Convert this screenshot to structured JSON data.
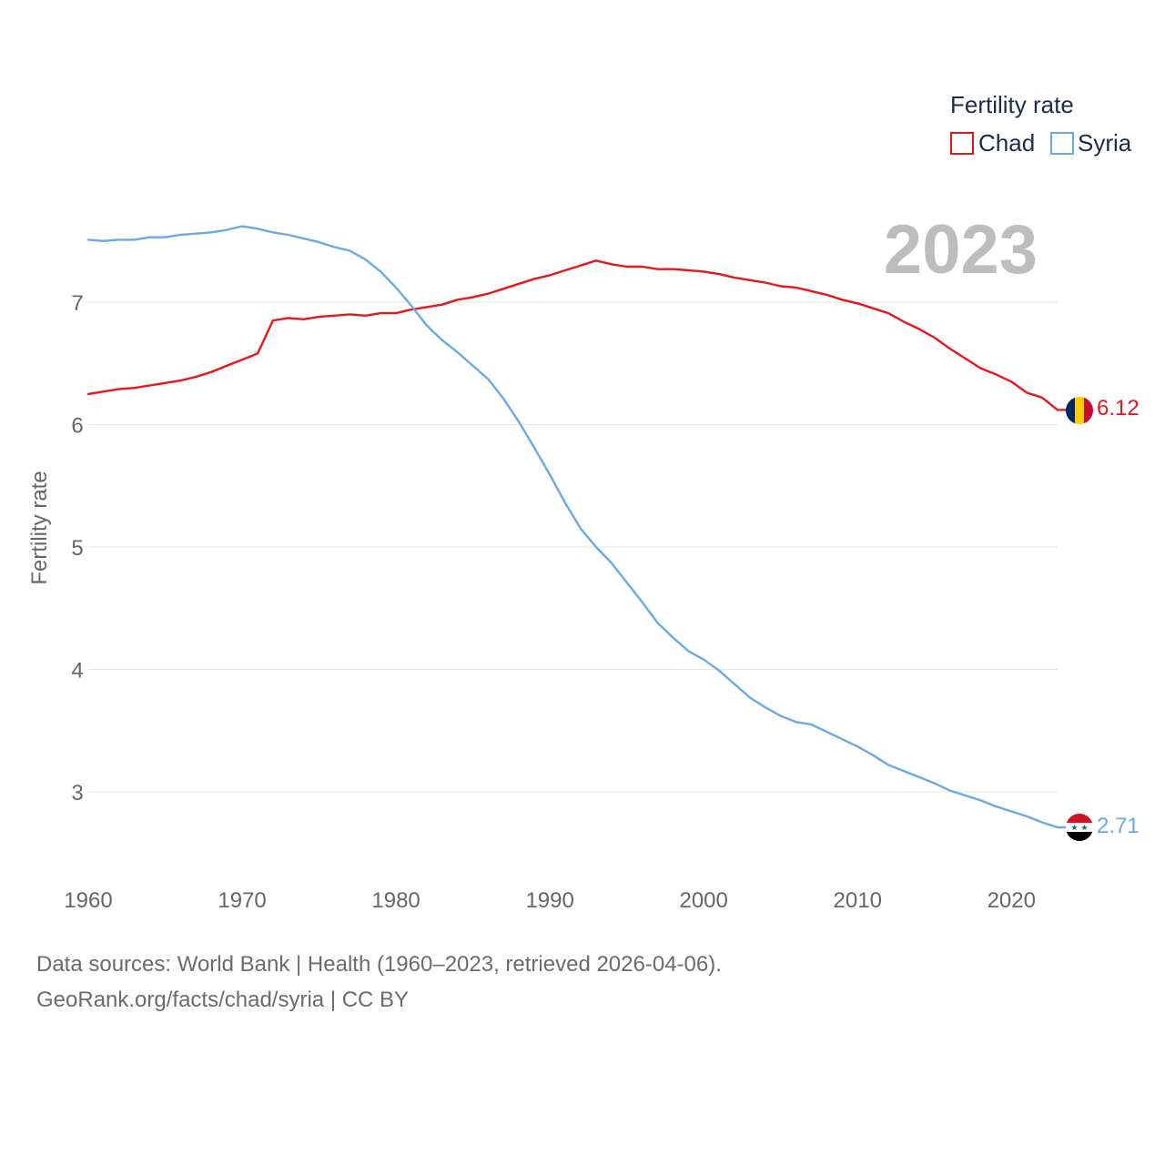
{
  "chart_data": {
    "type": "line",
    "legend_title": "Fertility rate",
    "ylabel": "Fertility rate",
    "xlabel": "",
    "current_year_label": "2023",
    "xlim": [
      1960,
      2023
    ],
    "ylim": [
      2.5,
      7.75
    ],
    "x_ticks": [
      1960,
      1970,
      1980,
      1990,
      2000,
      2010,
      2020
    ],
    "y_ticks": [
      3,
      4,
      5,
      6,
      7
    ],
    "x_tick_labels": [
      "1960",
      "1970",
      "1980",
      "1990",
      "2000",
      "2010",
      "2020"
    ],
    "y_tick_labels": [
      "3",
      "4",
      "5",
      "6",
      "7"
    ],
    "legend_position": "top-right",
    "grid": true,
    "series": [
      {
        "name": "Chad",
        "color": "#e8151b",
        "end_label": "6.12",
        "flag_icon": "chad-flag-icon",
        "start_year": 1960,
        "values": [
          6.25,
          6.27,
          6.29,
          6.3,
          6.32,
          6.34,
          6.36,
          6.39,
          6.43,
          6.48,
          6.53,
          6.58,
          6.85,
          6.87,
          6.86,
          6.88,
          6.89,
          6.9,
          6.89,
          6.91,
          6.91,
          6.94,
          6.96,
          6.98,
          7.02,
          7.04,
          7.07,
          7.11,
          7.15,
          7.19,
          7.22,
          7.26,
          7.3,
          7.34,
          7.31,
          7.29,
          7.29,
          7.27,
          7.27,
          7.26,
          7.25,
          7.23,
          7.2,
          7.18,
          7.16,
          7.13,
          7.12,
          7.09,
          7.06,
          7.02,
          6.99,
          6.95,
          6.91,
          6.84,
          6.78,
          6.71,
          6.62,
          6.54,
          6.46,
          6.41,
          6.35,
          6.26,
          6.22,
          6.12
        ]
      },
      {
        "name": "Syria",
        "color": "#6aaae4",
        "end_label": "2.71",
        "flag_icon": "syria-flag-icon",
        "start_year": 1960,
        "values": [
          7.51,
          7.5,
          7.51,
          7.51,
          7.53,
          7.53,
          7.55,
          7.56,
          7.57,
          7.59,
          7.62,
          7.6,
          7.57,
          7.55,
          7.52,
          7.49,
          7.45,
          7.42,
          7.35,
          7.25,
          7.12,
          6.97,
          6.81,
          6.69,
          6.59,
          6.48,
          6.37,
          6.21,
          6.02,
          5.81,
          5.59,
          5.36,
          5.15,
          5.0,
          4.87,
          4.71,
          4.55,
          4.38,
          4.26,
          4.15,
          4.08,
          3.99,
          3.88,
          3.77,
          3.69,
          3.62,
          3.57,
          3.55,
          3.49,
          3.43,
          3.37,
          3.3,
          3.22,
          3.17,
          3.12,
          3.07,
          3.01,
          2.97,
          2.93,
          2.88,
          2.84,
          2.8,
          2.75,
          2.71
        ]
      }
    ]
  },
  "footer": {
    "line1": "Data sources: World Bank | Health (1960–2023, retrieved 2026-04-06).",
    "line2": "GeoRank.org/facts/chad/syria | CC BY"
  }
}
